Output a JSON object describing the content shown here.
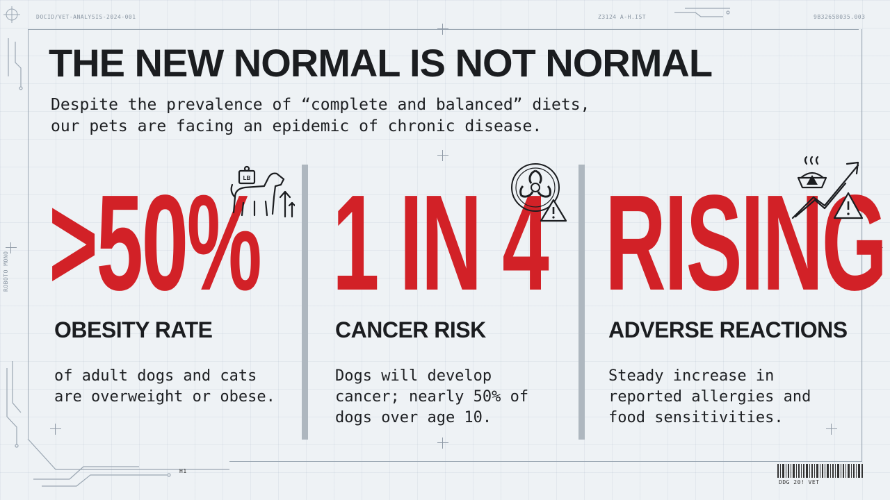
{
  "meta": {
    "doc_id": "DOCID/VET-ANALYSIS-2024-001",
    "top_code": "Z3124 A-H.IST",
    "top_right_code": "9B32658035.003",
    "bottom_code": "H1",
    "barcode_text": "DDG 20! VET",
    "side_left_text": "ROBOTO MONO"
  },
  "header": {
    "title": "THE NEW NORMAL IS NOT NORMAL",
    "subtitle_line1": "Despite the prevalence of “complete and balanced” diets,",
    "subtitle_line2": "our pets are facing an epidemic of chronic disease."
  },
  "stats": [
    {
      "value": ">50%",
      "label": "OBESITY RATE",
      "description": "of adult dogs and cats\nare overweight or obese.",
      "icon": "dog-weight-icon"
    },
    {
      "value": "1 IN 4",
      "label": "CANCER RISK",
      "description": "Dogs will develop\ncancer; nearly 50% of\ndogs over age 10.",
      "icon": "biohazard-warning-icon"
    },
    {
      "value": "RISING",
      "label": "ADVERSE REACTIONS",
      "description": "Steady increase in\nreported allergies and\nfood sensitivities.",
      "icon": "food-bowl-trend-warning-icon"
    }
  ],
  "icons": {
    "weight_tag": "LB"
  },
  "colors": {
    "accent": "#d22127",
    "text": "#1b1d20",
    "background": "#eef2f5",
    "divider": "#aeb7bf"
  }
}
